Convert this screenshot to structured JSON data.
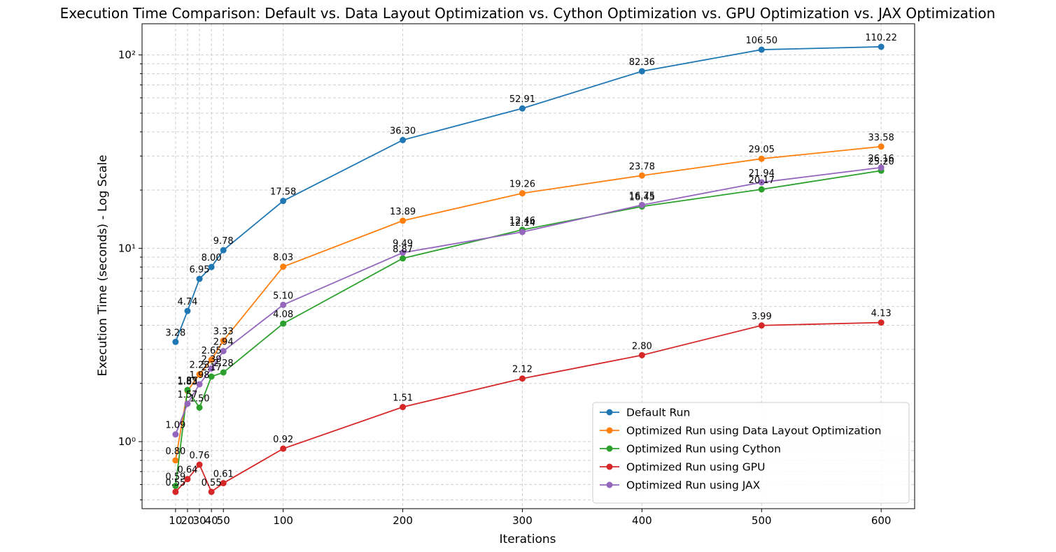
{
  "chart_data": {
    "type": "line",
    "title": "Execution Time Comparison: Default vs. Data Layout Optimization vs. Cython Optimization vs. GPU Optimization vs. JAX Optimization",
    "xlabel": "Iterations",
    "ylabel": "Execution Time (seconds) - Log Scale",
    "x": [
      10,
      20,
      30,
      40,
      50,
      100,
      200,
      300,
      400,
      500,
      600
    ],
    "x_ticks": [
      10,
      20,
      30,
      40,
      50,
      100,
      200,
      300,
      400,
      500,
      600
    ],
    "x_range": [
      -18,
      628
    ],
    "y_scale": "log",
    "y_range": [
      0.45,
      145
    ],
    "y_ticks": [
      1,
      10,
      100
    ],
    "y_tick_labels": [
      "10⁰",
      "10¹",
      "10²"
    ],
    "grid": true,
    "legend_position": "bottom-right",
    "series": [
      {
        "name": "Default Run",
        "color": "#1f77b4",
        "values": [
          3.28,
          4.74,
          6.95,
          8.0,
          9.78,
          17.58,
          36.3,
          52.91,
          82.36,
          106.5,
          110.22
        ],
        "labels": [
          "3.28",
          "4.74",
          "6.95",
          "8.00",
          "9.78",
          "17.58",
          "36.30",
          "52.91",
          "82.36",
          "106.50",
          "110.22"
        ]
      },
      {
        "name": "Optimized Run using Data Layout Optimization",
        "color": "#ff7f0e",
        "values": [
          0.8,
          1.83,
          2.23,
          2.65,
          3.33,
          8.03,
          13.89,
          19.26,
          23.78,
          29.05,
          33.58
        ],
        "labels": [
          "0.80",
          "1.83",
          "2.23",
          "2.65",
          "3.33",
          "8.03",
          "13.89",
          "19.26",
          "23.78",
          "29.05",
          "33.58"
        ]
      },
      {
        "name": "Optimized Run using Cython",
        "color": "#2ca02c",
        "values": [
          0.59,
          1.85,
          1.5,
          2.17,
          2.28,
          4.08,
          8.87,
          12.46,
          16.45,
          20.17,
          25.2
        ],
        "labels": [
          "0.59",
          "1.85",
          "1.50",
          "2.17",
          "2.28",
          "4.08",
          "8.87",
          "12.46",
          "16.45",
          "20.17",
          "25.20"
        ]
      },
      {
        "name": "Optimized Run using GPU",
        "color": "#d62728",
        "values": [
          0.55,
          0.64,
          0.76,
          0.55,
          0.61,
          0.92,
          1.51,
          2.12,
          2.8,
          3.99,
          4.13
        ],
        "labels": [
          "0.55",
          "0.64",
          "0.76",
          "0.55",
          "0.61",
          "0.92",
          "1.51",
          "2.12",
          "2.80",
          "3.99",
          "4.13"
        ]
      },
      {
        "name": "Optimized Run using JAX",
        "color": "#9467bd",
        "values": [
          1.09,
          1.57,
          1.98,
          2.39,
          2.94,
          5.1,
          9.49,
          12.14,
          16.75,
          21.94,
          26.16
        ],
        "labels": [
          "1.09",
          "1.57",
          "1.98",
          "2.39",
          "2.94",
          "5.10",
          "9.49",
          "12.14",
          "16.75",
          "21.94",
          "26.16"
        ]
      }
    ]
  }
}
